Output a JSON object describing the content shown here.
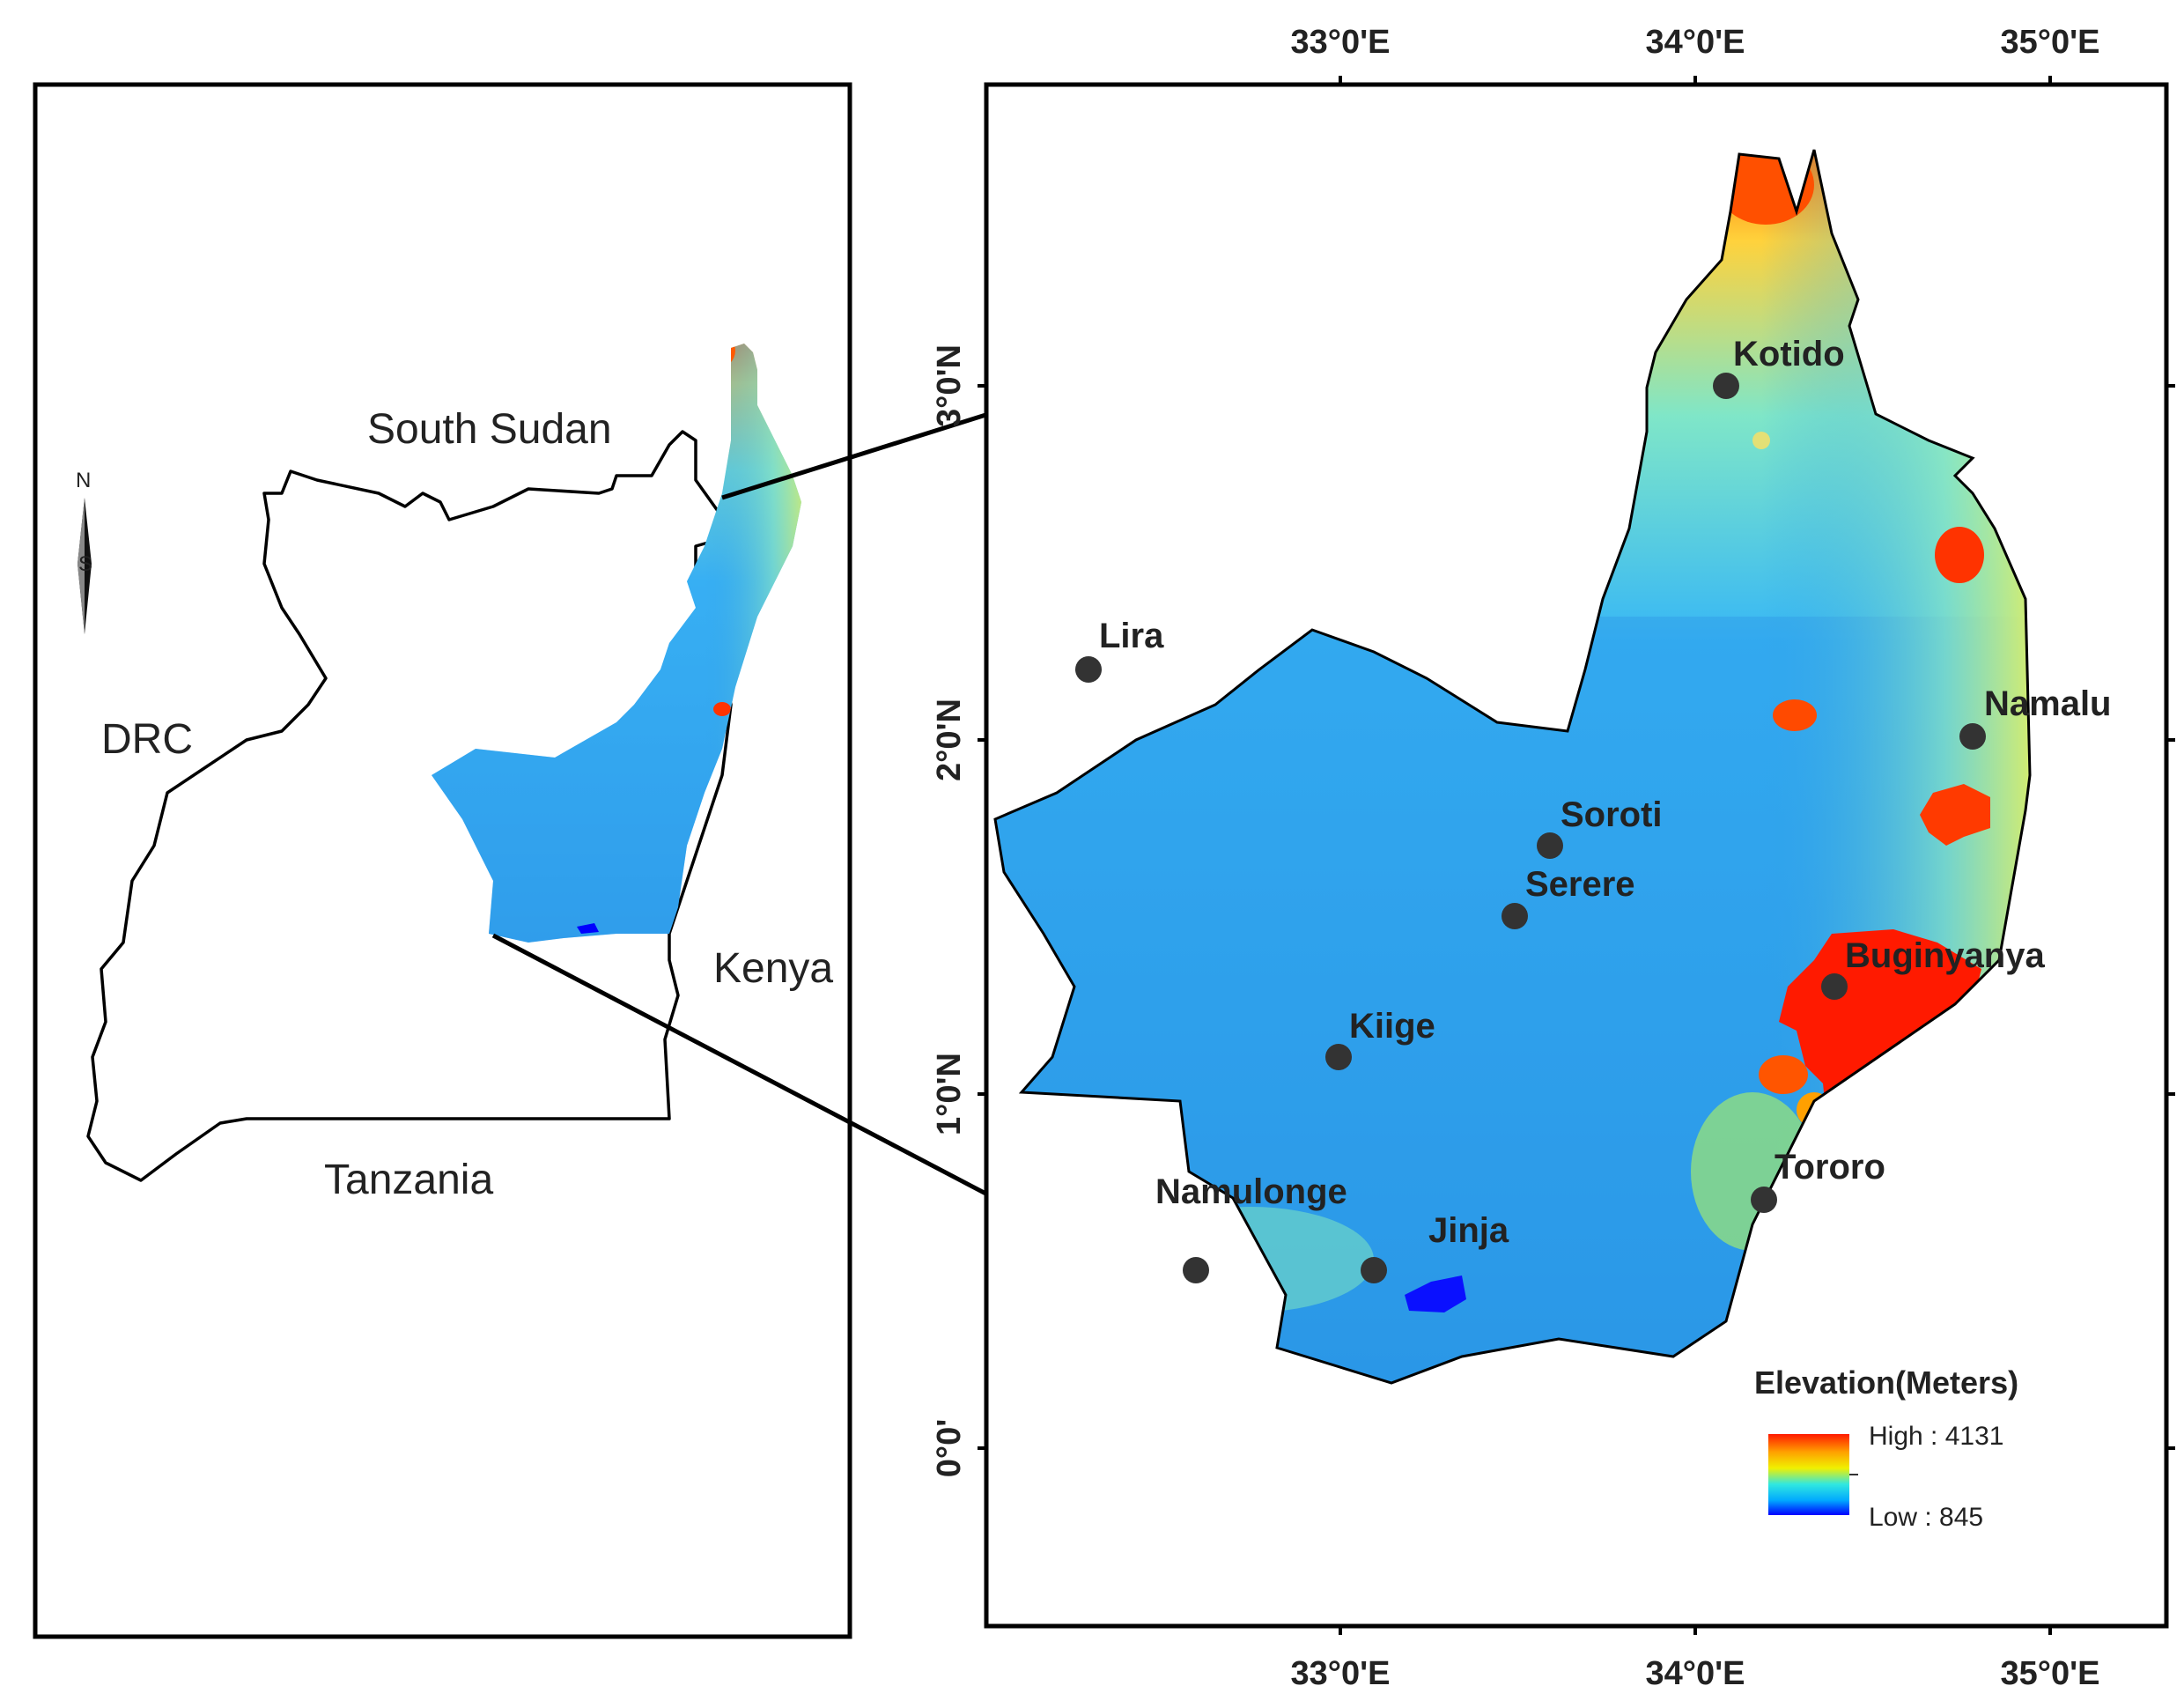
{
  "inset": {
    "countries": {
      "south_sudan": "South Sudan",
      "drc": "DRC",
      "kenya": "Kenya",
      "tanzania": "Tanzania"
    },
    "north_arrow": {
      "n": "N",
      "s": "S"
    }
  },
  "main_map": {
    "top_axis": [
      "33°0'E",
      "34°0'E",
      "35°0'E"
    ],
    "bottom_axis": [
      "33°0'E",
      "34°0'E",
      "35°0'E"
    ],
    "left_axis": [
      "3°0'N",
      "2°0'N",
      "1°0'N",
      "0°0'"
    ],
    "stations": [
      {
        "name": "Kotido"
      },
      {
        "name": "Lira"
      },
      {
        "name": "Namalu"
      },
      {
        "name": "Soroti"
      },
      {
        "name": "Serere"
      },
      {
        "name": "Buginyanya"
      },
      {
        "name": "Kiige"
      },
      {
        "name": "Tororo"
      },
      {
        "name": "Namulonge"
      },
      {
        "name": "Jinja"
      }
    ],
    "legend": {
      "title": "Elevation(Meters)",
      "high": "High : 4131",
      "low": "Low : 845",
      "colors": [
        "#ff1a00",
        "#ffd000",
        "#00e5ff",
        "#0000ff"
      ]
    }
  }
}
